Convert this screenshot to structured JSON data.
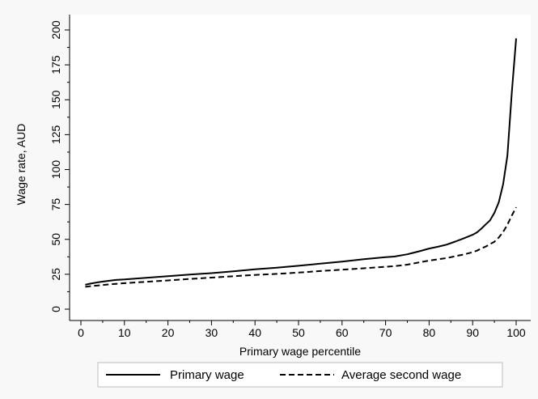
{
  "chart_data": {
    "type": "line",
    "title": "",
    "xlabel": "Primary wage percentile",
    "ylabel": "Wage rate, AUD",
    "xlim": [
      0,
      100
    ],
    "ylim": [
      0,
      200
    ],
    "xticks": [
      0,
      10,
      20,
      30,
      40,
      50,
      60,
      70,
      80,
      90,
      100
    ],
    "yticks": [
      0,
      25,
      50,
      75,
      100,
      125,
      150,
      175,
      200
    ],
    "grid": false,
    "legend_position": "bottom",
    "x": [
      1,
      2,
      4,
      6,
      8,
      10,
      15,
      20,
      25,
      30,
      35,
      40,
      45,
      50,
      55,
      60,
      65,
      70,
      72,
      75,
      78,
      80,
      82,
      84,
      86,
      88,
      90,
      91,
      92,
      93,
      94,
      95,
      96,
      97,
      98,
      99,
      100
    ],
    "series": [
      {
        "name": "Primary wage",
        "line_style": "solid",
        "color": "#000000",
        "values": [
          17.5,
          18.2,
          19.3,
          20.2,
          20.9,
          21.3,
          22.5,
          23.6,
          24.8,
          25.8,
          27.1,
          28.5,
          29.7,
          31.1,
          32.6,
          34.1,
          35.8,
          37.2,
          37.7,
          39.3,
          41.7,
          43.4,
          44.7,
          46.2,
          48.4,
          50.8,
          53.3,
          55.0,
          57.7,
          60.7,
          63.6,
          69.0,
          76.5,
          89.5,
          110.0,
          155.0,
          194.0
        ]
      },
      {
        "name": "Average second wage",
        "line_style": "dashed",
        "color": "#000000",
        "values": [
          16.0,
          16.4,
          17.0,
          17.6,
          18.1,
          18.6,
          19.6,
          20.6,
          21.6,
          22.6,
          23.6,
          24.5,
          25.3,
          26.2,
          27.3,
          28.3,
          29.3,
          30.4,
          30.8,
          31.9,
          33.7,
          34.8,
          35.7,
          36.6,
          37.9,
          39.2,
          40.8,
          41.9,
          43.5,
          44.8,
          46.6,
          48.3,
          51.3,
          55.3,
          60.5,
          67.0,
          73.0
        ]
      }
    ]
  }
}
